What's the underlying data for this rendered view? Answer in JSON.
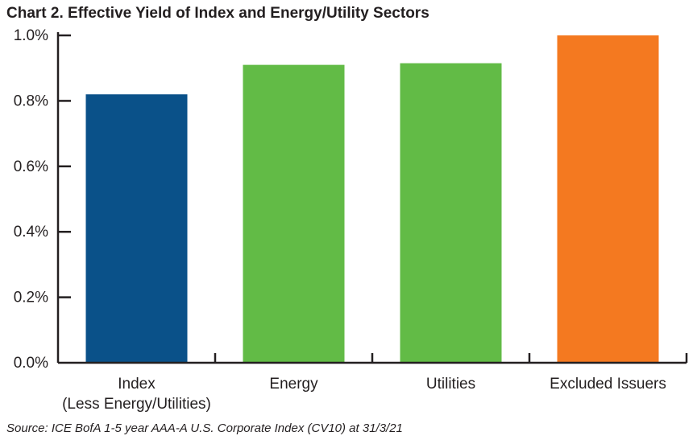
{
  "title": "Chart 2. Effective Yield of Index and Energy/Utility Sectors",
  "source": "Source: ICE BofA 1-5 year AAA-A U.S. Corporate Index (CV10) at 31/3/21",
  "chart_data": {
    "type": "bar",
    "title": "Chart 2. Effective Yield of Index and Energy/Utility Sectors",
    "xlabel": "",
    "ylabel": "",
    "ylim": [
      0,
      1.0
    ],
    "yticks": [
      "0.0%",
      "0.2%",
      "0.4%",
      "0.6%",
      "0.8%",
      "1.0%"
    ],
    "ytick_values": [
      0,
      0.2,
      0.4,
      0.6,
      0.8,
      1.0
    ],
    "categories": [
      [
        "Index",
        "(Less Energy/Utilities)"
      ],
      [
        "Energy"
      ],
      [
        "Utilities"
      ],
      [
        "Excluded Issuers"
      ]
    ],
    "values": [
      0.82,
      0.91,
      0.915,
      1.0
    ],
    "colors": [
      "#0a5189",
      "#62bb46",
      "#62bb46",
      "#f47920"
    ]
  }
}
